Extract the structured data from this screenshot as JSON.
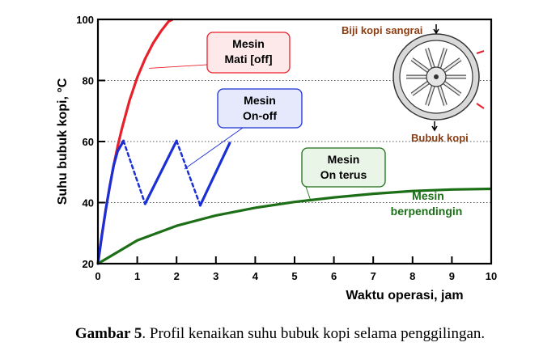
{
  "chart_data": {
    "type": "line",
    "xlabel": "Waktu operasi, jam",
    "ylabel": "Suhu bubuk kopi, °C",
    "xlim": [
      0,
      10
    ],
    "ylim": [
      20,
      100
    ],
    "x_ticks": [
      "0",
      "1",
      "2",
      "3",
      "4",
      "5",
      "6",
      "7",
      "8",
      "9",
      "10"
    ],
    "y_ticks": [
      "20",
      "40",
      "60",
      "80",
      "100"
    ],
    "grid": "horizontal dotted at 40, 60, 80",
    "series": [
      {
        "key": "mati",
        "color": "#e8202a",
        "style": "solid",
        "points": [
          [
            0,
            20
          ],
          [
            0.1,
            29.3
          ],
          [
            0.2,
            37.7
          ],
          [
            0.3,
            45.3
          ],
          [
            0.4,
            52.1
          ],
          [
            0.5,
            58.3
          ],
          [
            0.6,
            63.8
          ],
          [
            0.8,
            73.3
          ],
          [
            1.0,
            81.0
          ],
          [
            1.2,
            87.1
          ],
          [
            1.4,
            92.1
          ],
          [
            1.6,
            96.1
          ],
          [
            1.8,
            99.4
          ],
          [
            1.9,
            100
          ]
        ]
      },
      {
        "key": "onoff",
        "color": "#1b2fd6",
        "segments": [
          {
            "style": "solid",
            "points": [
              [
                0,
                20
              ],
              [
                0.1,
                29.3
              ],
              [
                0.2,
                37.7
              ],
              [
                0.3,
                45.3
              ],
              [
                0.4,
                52.1
              ],
              [
                0.5,
                56.8
              ],
              [
                0.65,
                60.2
              ]
            ]
          },
          {
            "style": "dashed",
            "points": [
              [
                0.65,
                60.2
              ],
              [
                1.2,
                39.6
              ]
            ]
          },
          {
            "style": "solid",
            "points": [
              [
                1.2,
                39.6
              ],
              [
                2.0,
                60.2
              ]
            ]
          },
          {
            "style": "dashed",
            "points": [
              [
                2.0,
                60.2
              ],
              [
                2.6,
                39.1
              ]
            ]
          },
          {
            "style": "solid",
            "points": [
              [
                2.6,
                39.1
              ],
              [
                3.35,
                59.5
              ]
            ]
          }
        ]
      },
      {
        "key": "terus",
        "color": "#1c6e17",
        "style": "solid",
        "points": [
          [
            0,
            20
          ],
          [
            1,
            27.6
          ],
          [
            2,
            32.4
          ],
          [
            3,
            35.8
          ],
          [
            4,
            38.3
          ],
          [
            5,
            40.2
          ],
          [
            6,
            41.7
          ],
          [
            7,
            42.9
          ],
          [
            8,
            43.8
          ],
          [
            9,
            44.3
          ],
          [
            10,
            44.5
          ]
        ]
      }
    ],
    "annotations": [
      {
        "key": "mati",
        "lines": [
          "Mesin",
          "Mati [off]"
        ],
        "border": "#e8202a",
        "fill": "#fde9ea",
        "anchor_data": [
          1.3,
          84
        ],
        "text_color": "#000000"
      },
      {
        "key": "onoff",
        "lines": [
          "Mesin",
          "On-off"
        ],
        "border": "#1b2fd6",
        "fill": "#e5e9fb",
        "anchor_data": [
          2.2,
          51
        ],
        "text_color": "#000000"
      },
      {
        "key": "terus",
        "lines": [
          "Mesin",
          "On terus"
        ],
        "border": "#1c6e17",
        "fill": "#e9f5e6",
        "anchor_data": [
          5.4,
          41
        ],
        "text_color": "#000000"
      },
      {
        "key": "pendingin",
        "lines": [
          "Mesin",
          "berpendingin"
        ],
        "text_color": "#1c6e17"
      }
    ],
    "inset": {
      "label_top": "Biji kopi sangrai",
      "label_bottom": "Bubuk kopi",
      "label_color": "#8b3d12"
    }
  },
  "caption": {
    "bold": "Gambar 5",
    "text": ". Profil kenaikan suhu bubuk kopi selama penggilingan."
  }
}
